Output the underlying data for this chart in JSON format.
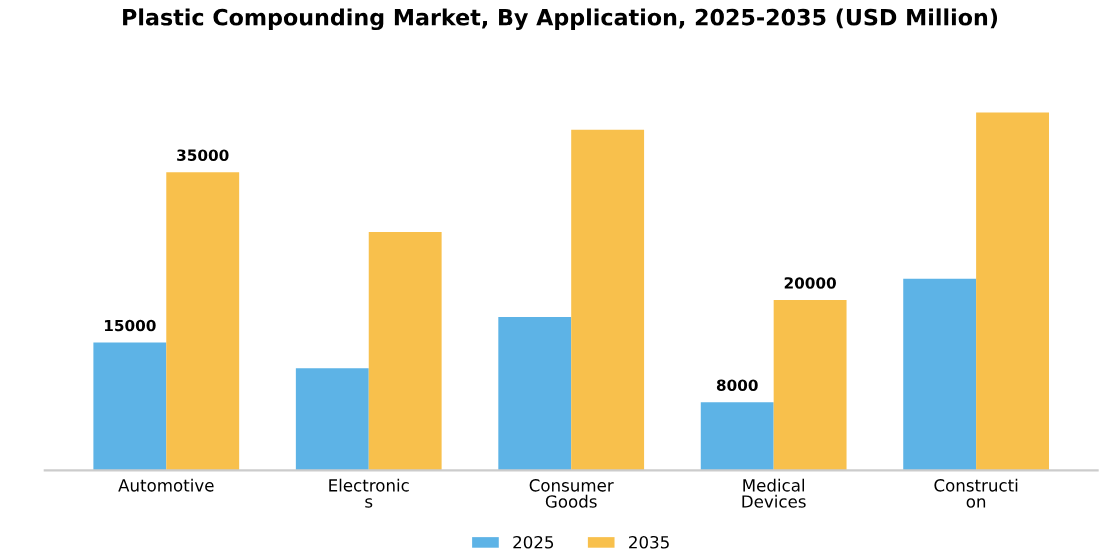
{
  "chart_data": {
    "type": "bar",
    "title": "Plastic Compounding Market, By Application, 2025-2035 (USD Million)",
    "categories": [
      "Automotive",
      "Electronic\ns",
      "Consumer\nGoods",
      "Medical\nDevices",
      "Constructi\non"
    ],
    "series": [
      {
        "name": "2025",
        "color": "#5db3e6",
        "values": [
          15000,
          12000,
          18000,
          8000,
          22500
        ],
        "value_labels": [
          "15000",
          null,
          null,
          "8000",
          null
        ]
      },
      {
        "name": "2035",
        "color": "#f8c04c",
        "values": [
          35000,
          28000,
          40000,
          20000,
          42000
        ],
        "value_labels": [
          "35000",
          null,
          null,
          "20000",
          null
        ]
      }
    ],
    "tick_labels": "x",
    "grid": false,
    "legend": "bottom"
  }
}
